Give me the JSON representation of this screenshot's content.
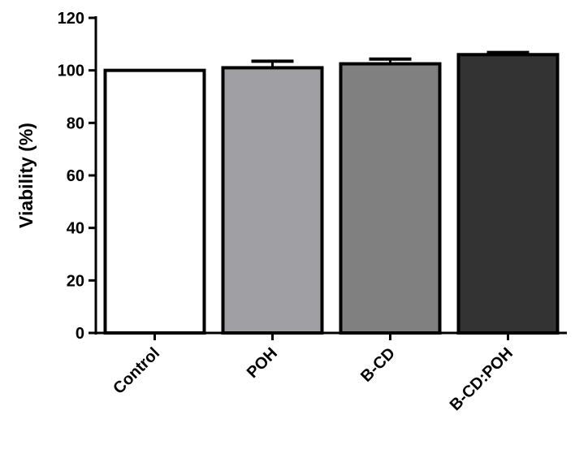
{
  "chart_data": {
    "type": "bar",
    "title": "",
    "xlabel": "",
    "ylabel": "Viability (%)",
    "ylim": [
      0,
      120
    ],
    "yticks": [
      0,
      20,
      40,
      60,
      80,
      100,
      120
    ],
    "grid": false,
    "categories": [
      "Control",
      "POH",
      "B-CD",
      "B-CD:POH"
    ],
    "values": [
      100,
      101,
      102.5,
      106
    ],
    "errors": [
      0,
      2.5,
      1.8,
      0.8
    ],
    "colors": [
      "#ffffff",
      "#a0a0a4",
      "#808080",
      "#333333"
    ]
  }
}
